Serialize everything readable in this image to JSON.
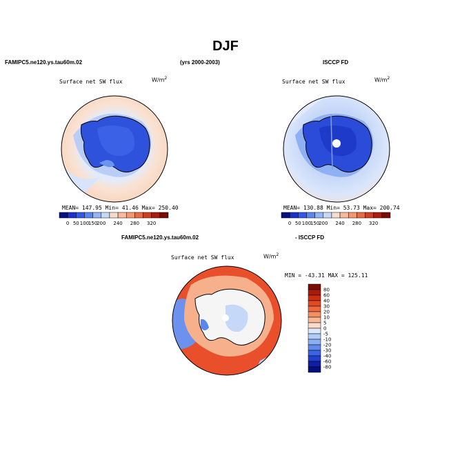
{
  "figure": {
    "title": "DJF",
    "left_header": "FAMIPC5.ne120.ys.tau60m.02",
    "center_header": "(yrs 2000-2003)",
    "right_header": "ISCCP FD",
    "bottom_left_header": "FAMIPC5.ne120.ys.tau60m.02",
    "bottom_right_header": "- ISCCP FD"
  },
  "panels": [
    {
      "id": "model",
      "subtitle": "Surface net SW flux",
      "units": "W/m",
      "units_sup": "2",
      "stats": "MEAN= 147.95   Min=  41.46   Max= 250.40"
    },
    {
      "id": "obs",
      "subtitle": "Surface net SW flux",
      "units": "W/m",
      "units_sup": "2",
      "stats": "MEAN= 130.88   Min=  53.73   Max= 200.74"
    },
    {
      "id": "diff",
      "subtitle": "Surface net SW flux",
      "units": "W/m",
      "units_sup": "2",
      "stats": "MIN = -43.31  MAX = 125.11"
    }
  ],
  "colorbar_top": {
    "labels": [
      "0",
      "50",
      "100",
      "150",
      "200",
      "240",
      "280",
      "320"
    ],
    "colors": [
      "#08127e",
      "#1b31c8",
      "#3358e6",
      "#5a86f0",
      "#93b4f5",
      "#c6d8f8",
      "#f5dccb",
      "#f6bb9b",
      "#f29772",
      "#e56c49",
      "#cc4022",
      "#a51f10",
      "#7a0c06"
    ]
  },
  "colorbar_diff": {
    "labels": [
      "80",
      "60",
      "40",
      "30",
      "20",
      "10",
      "5",
      "0",
      "-5",
      "-10",
      "-20",
      "-30",
      "-40",
      "-60",
      "-80"
    ],
    "colors": [
      "#7a0c06",
      "#a81c0b",
      "#cd2e12",
      "#e24a24",
      "#ee6a3e",
      "#f48f62",
      "#f8b795",
      "#fbdcc8",
      "#dbe7fb",
      "#b3ccf7",
      "#8aaef2",
      "#6189ec",
      "#3a62e4",
      "#2140d2",
      "#0e1fa6",
      "#06107a"
    ]
  }
}
